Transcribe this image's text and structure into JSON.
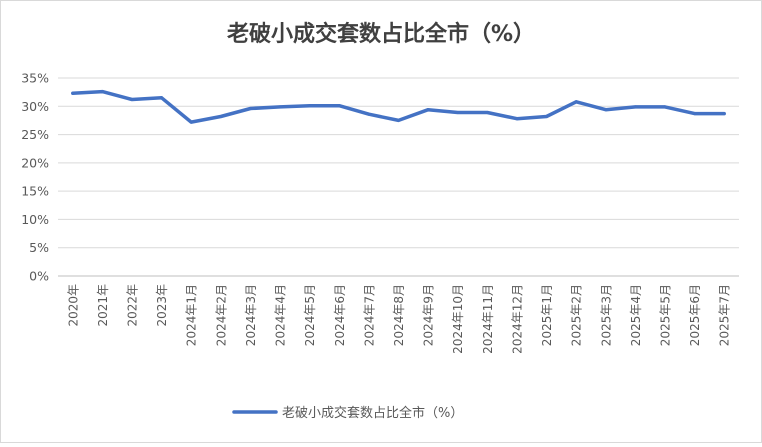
{
  "chart_data": {
    "type": "line",
    "title": "老破小成交套数占比全市（%）",
    "xlabel": "",
    "ylabel": "",
    "ylim": [
      0,
      35
    ],
    "yticks": [
      "0%",
      "5%",
      "10%",
      "15%",
      "20%",
      "25%",
      "30%",
      "35%"
    ],
    "categories": [
      "2020年",
      "2021年",
      "2022年",
      "2023年",
      "2024年1月",
      "2024年2月",
      "2024年3月",
      "2024年4月",
      "2024年5月",
      "2024年6月",
      "2024年7月",
      "2024年8月",
      "2024年9月",
      "2024年10月",
      "2024年11月",
      "2024年12月",
      "2025年1月",
      "2025年2月",
      "2025年3月",
      "2025年4月",
      "2025年5月",
      "2025年6月",
      "2025年7月"
    ],
    "series": [
      {
        "name": "老破小成交套数占比全市（%）",
        "color": "#4472C4",
        "values": [
          32.3,
          32.6,
          31.2,
          31.5,
          27.2,
          28.2,
          29.6,
          29.9,
          30.1,
          30.1,
          28.6,
          27.5,
          29.4,
          28.9,
          28.9,
          27.8,
          28.2,
          30.8,
          29.4,
          29.9,
          29.9,
          28.7,
          28.7
        ]
      }
    ],
    "grid": true,
    "legend": "bottom"
  }
}
